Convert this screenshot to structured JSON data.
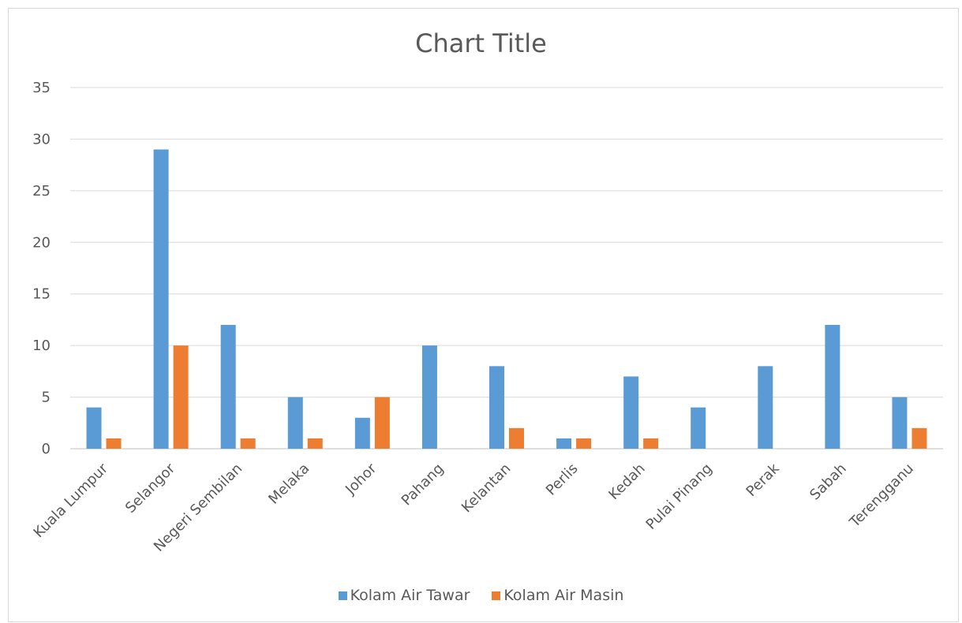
{
  "chart_data": {
    "type": "bar",
    "title": "Chart Title",
    "categories": [
      "Kuala Lumpur",
      "Selangor",
      "Negeri Sembilan",
      "Melaka",
      "Johor",
      "Pahang",
      "Kelantan",
      "Perlis",
      "Kedah",
      "Pulai Pinang",
      "Perak",
      "Sabah",
      "Terengganu"
    ],
    "series": [
      {
        "name": "Kolam Air Tawar",
        "color": "#5b9bd5",
        "values": [
          4,
          29,
          12,
          5,
          3,
          10,
          8,
          1,
          7,
          4,
          8,
          12,
          5
        ]
      },
      {
        "name": "Kolam Air Masin",
        "color": "#ed7d31",
        "values": [
          1,
          10,
          1,
          1,
          5,
          0,
          2,
          1,
          1,
          0,
          0,
          0,
          2
        ]
      }
    ],
    "ylim": [
      0,
      35
    ],
    "yticks": [
      0,
      5,
      10,
      15,
      20,
      25,
      30,
      35
    ],
    "grid": true,
    "legend_position": "bottom"
  }
}
